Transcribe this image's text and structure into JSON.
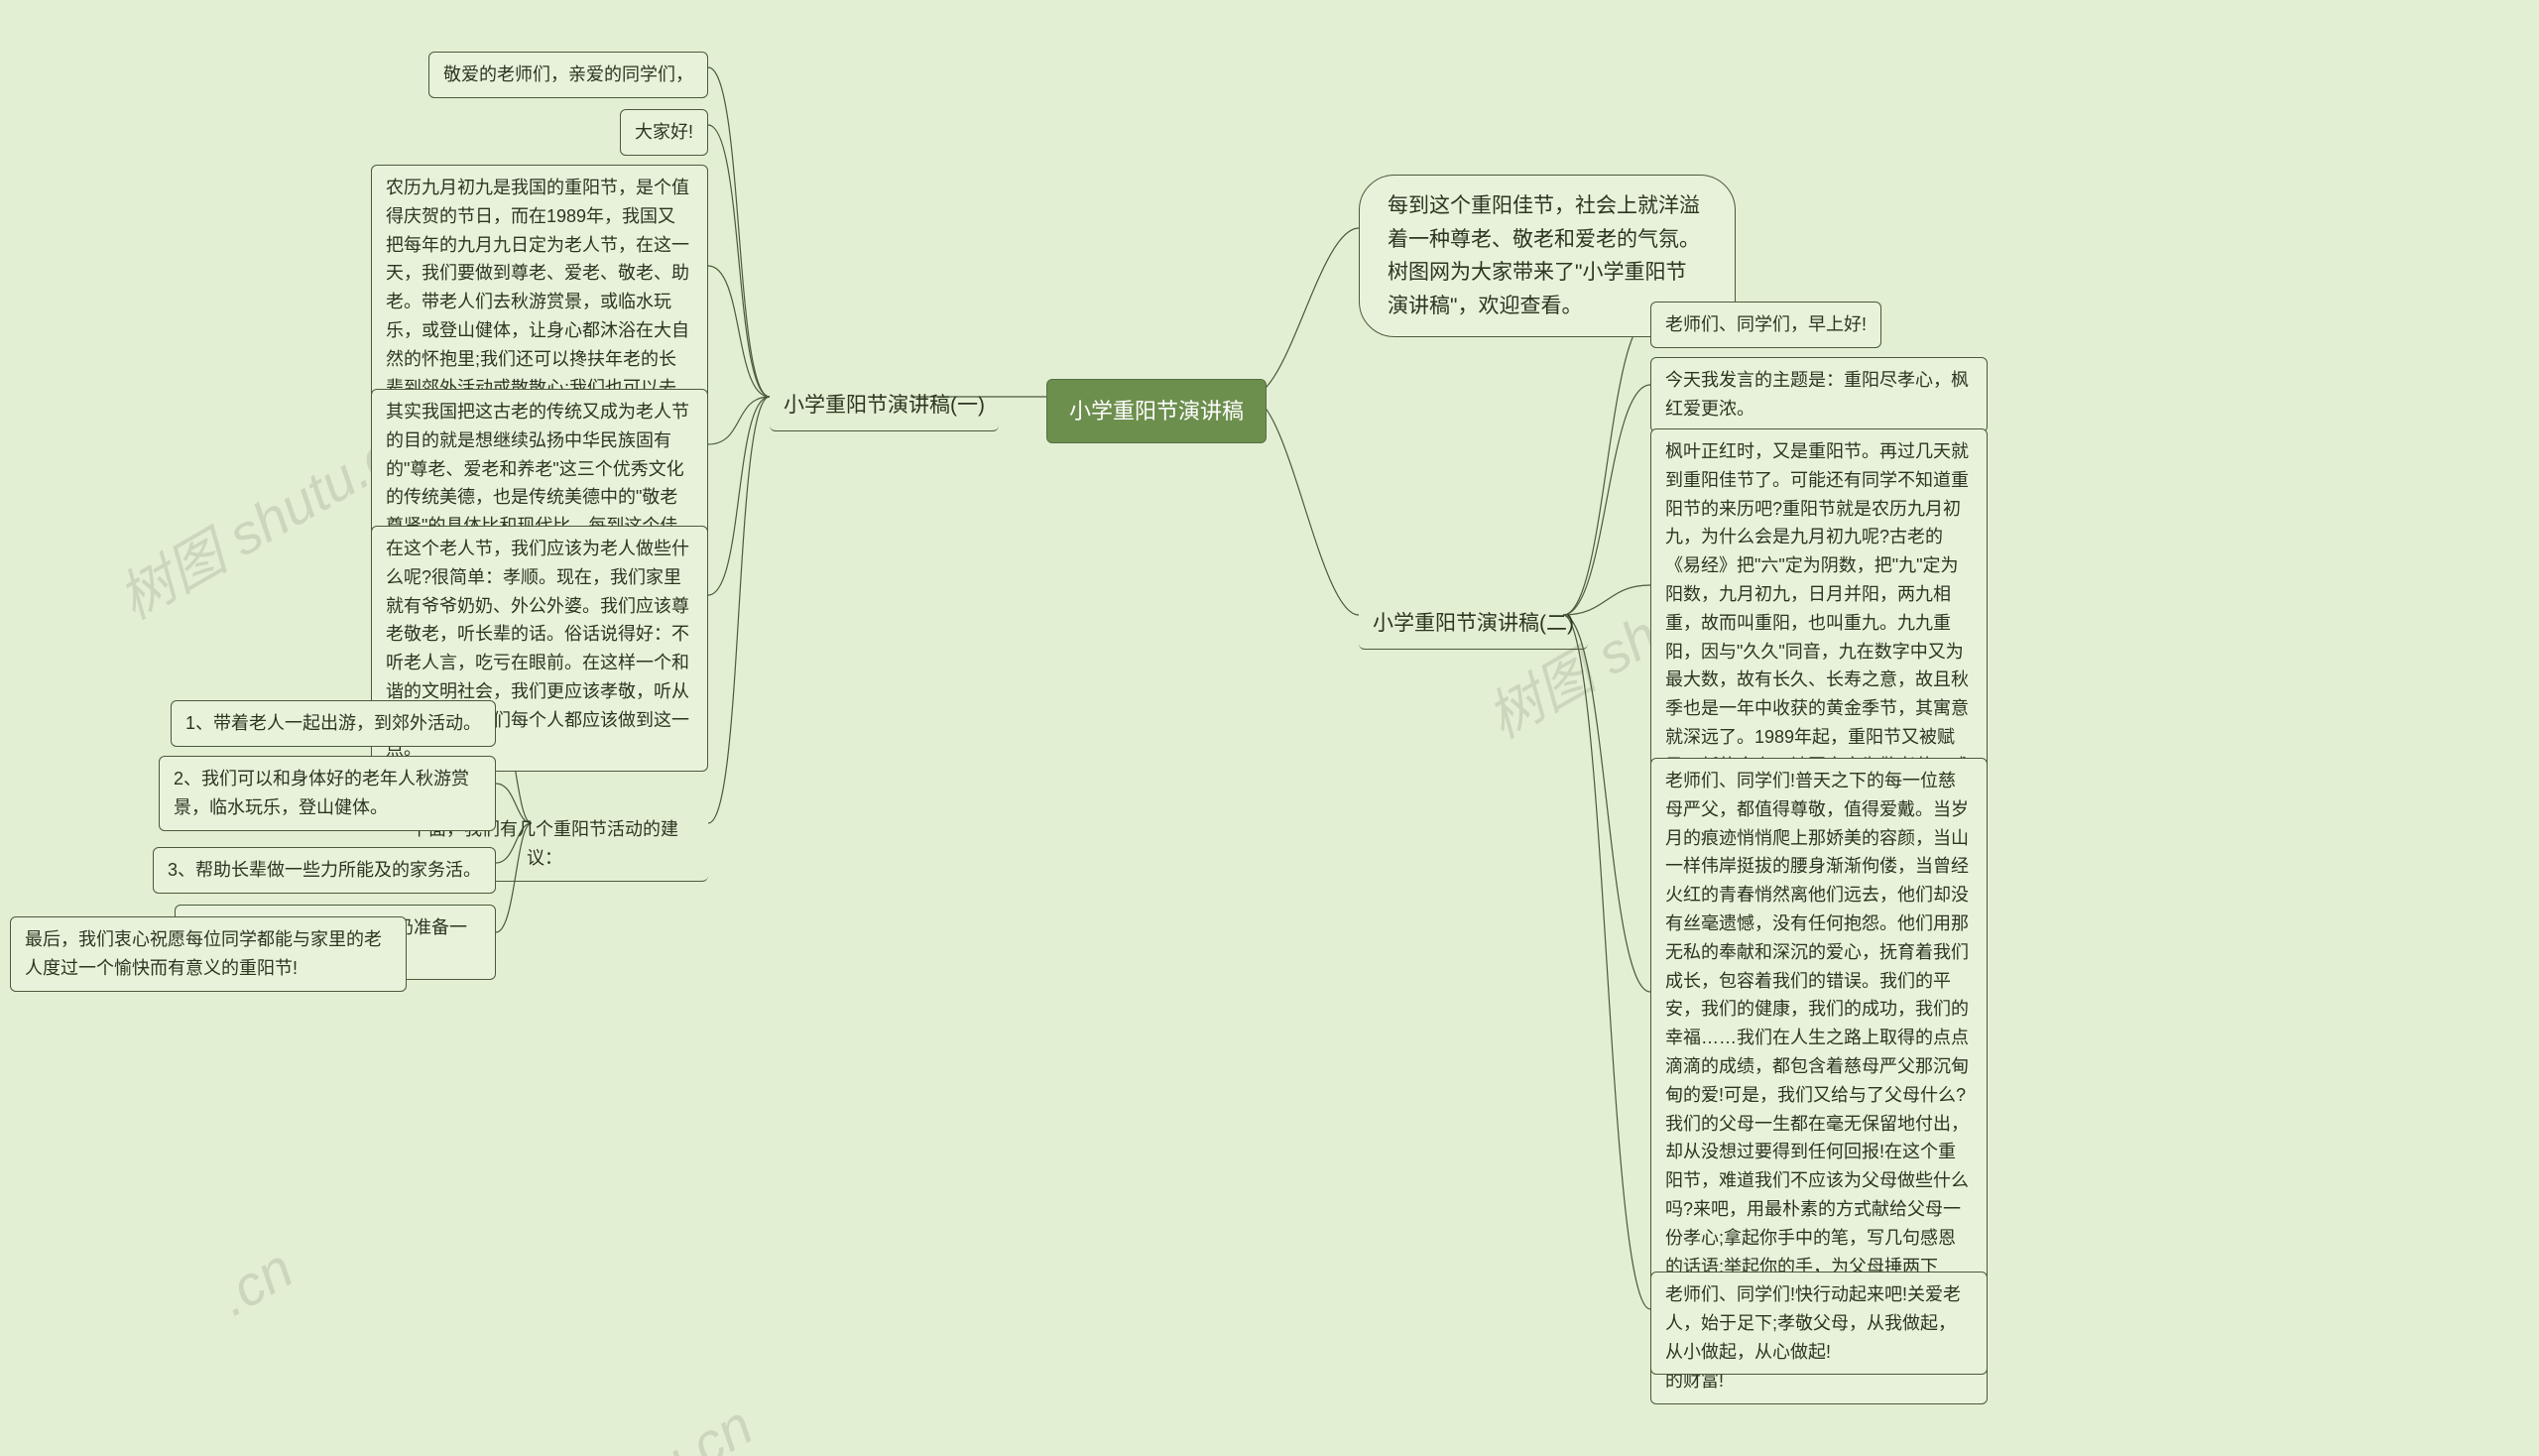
{
  "colors": {
    "background": "#e3efd3",
    "node_fill": "#e8f2db",
    "node_border": "#4a5a3a",
    "root_fill": "#6d8f4e",
    "root_text": "#ffffff",
    "text": "#2b3520",
    "connector": "#4a5a3a",
    "watermark": "rgba(130,140,120,0.25)"
  },
  "root": {
    "title": "小学重阳节演讲稿"
  },
  "left": {
    "branch": "小学重阳节演讲稿(一)",
    "items": {
      "a": "敬爱的老师们，亲爱的同学们，",
      "b": "大家好!",
      "c": "农历九月初九是我国的重阳节，是个值得庆贺的节日，而在1989年，我国又把每年的九月九日定为老人节，在这一天，我们要做到尊老、爱老、敬老、助老。带老人们去秋游赏景，或临水玩乐，或登山健体，让身心都沐浴在大自然的怀抱里;我们还可以搀扶年老的长辈到郊外活动或散散心;我们也可以去敬老院帮助老人做事……",
      "d": "其实我国把这古老的传统又成为老人节的目的就是想继续弘扬中华民族固有的\"尊老、爱老和养老\"这三个优秀文化的传统美德，也是传统美德中的\"敬老尊贤\"的具体比和现代比。每到这个佳节，社会上就洋溢着一种尊老、敬老和爱老的气氛。",
      "e": "在这个老人节，我们应该为老人做些什么呢?很简单：孝顺。现在，我们家里就有爷爷奶奶、外公外婆。我们应该尊老敬老，听长辈的话。俗话说得好：不听老人言，吃亏在眼前。在这样一个和谐的文明社会，我们更应该孝敬，听从长辈，这是我们每个人都应该做到这一点。",
      "f": {
        "head": "下面，我们有几个重阳节活动的建议：",
        "s1": "1、带着老人一起出游，到郊外活动。",
        "s2": "2、我们可以和身体好的老年人秋游赏景，临水玩乐，登山健体。",
        "s3": "3、帮助长辈做一些力所能及的家务活。",
        "s4": "4、和父母一起，给爷爷奶奶准备一些可口的饮食。",
        "last": "最后，我们衷心祝愿每位同学都能与家里的老人度过一个愉快而有意义的重阳节!"
      }
    }
  },
  "right": {
    "intro": "每到这个重阳佳节，社会上就洋溢着一种尊老、敬老和爱老的气氛。树图网为大家带来了\"小学重阳节演讲稿\"，欢迎查看。",
    "branch": "小学重阳节演讲稿(二)",
    "items": {
      "a": "老师们、同学们，早上好!",
      "b": "今天我发言的主题是：重阳尽孝心，枫红爱更浓。",
      "c": "枫叶正红时，又是重阳节。再过几天就到重阳佳节了。可能还有同学不知道重阳节的来历吧?重阳节就是农历九月初九，为什么会是九月初九呢?古老的《易经》把\"六\"定为阴数，把\"九\"定为阳数，九月初九，日月并阳，两九相重，故而叫重阳，也叫重九。九九重阳，因与\"久久\"同音，九在数字中又为最大数，故有长久、长寿之意，故且秋季也是一年中收获的黄金季节，其寓意就深远了。1989年起，重阳节又被赋予了新的含义，被国家定为敬老节，成为人们尊老、敬老、爱老、助老、尽孝道表孝心、弘扬传统美德的节日。",
      "d": "老师们、同学们!普天之下的每一位慈母严父，都值得尊敬，值得爱戴。当岁月的痕迹悄悄爬上那娇美的容颜，当山一样伟岸挺拔的腰身渐渐佝偻，当曾经火红的青春悄然离他们远去，他们却没有丝毫遗憾，没有任何抱怨。他们用那无私的奉献和深沉的爱心，抚育着我们成长，包容着我们的错误。我们的平安，我们的健康，我们的成功，我们的幸福……我们在人生之路上取得的点点滴滴的成绩，都包含着慈母严父那沉甸甸的爱!可是，我们又给与了父母什么?我们的父母一生都在毫无保留地付出，却从没想过要得到任何回报!在这个重阳节，难道我们不应该为父母做些什么吗?来吧，用最朴素的方式献给父母一份孝心;拿起你手中的笔，写几句感恩的话语;举起你的手，为父母捶两下背、揉几下腰、洗一下脚;拿起你的相机，给父母留下一份美好的回忆!只要我们真心的做了，你就能得到一笔珍贵的财富!",
      "e": "老师们、同学们!快行动起来吧!关爱老人，始于足下;孝敬父母，从我做起，从小做起，从心做起!"
    }
  },
  "watermarks": {
    "w1": "树图 shutu.cn",
    "w2": "树图 shutu.cn",
    "w3": ".cn",
    "w4": "tu.cn"
  }
}
